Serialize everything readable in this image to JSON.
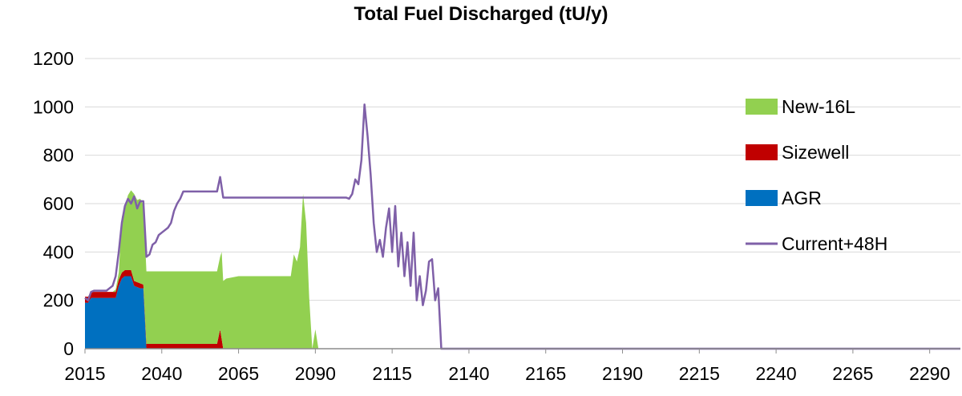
{
  "chart_data": {
    "type": "area",
    "title": "Total Fuel Discharged (tU/y)",
    "xlabel": "",
    "ylabel": "",
    "xlim": [
      2015,
      2300
    ],
    "ylim": [
      0,
      1200
    ],
    "xticks": [
      2015,
      2040,
      2065,
      2090,
      2115,
      2140,
      2165,
      2190,
      2215,
      2240,
      2265,
      2290
    ],
    "yticks": [
      0,
      200,
      400,
      600,
      800,
      1000,
      1200
    ],
    "grid": "horizontal",
    "legend_position": "top-right",
    "stack_order": [
      "AGR",
      "Sizewell",
      "New-16L"
    ],
    "series": [
      {
        "name": "AGR",
        "kind": "area",
        "color": "#0070C0",
        "points": [
          [
            2015,
            190
          ],
          [
            2016,
            190
          ],
          [
            2017,
            210
          ],
          [
            2018,
            210
          ],
          [
            2019,
            210
          ],
          [
            2020,
            210
          ],
          [
            2021,
            210
          ],
          [
            2022,
            210
          ],
          [
            2023,
            210
          ],
          [
            2024,
            210
          ],
          [
            2025,
            210
          ],
          [
            2026,
            260
          ],
          [
            2027,
            290
          ],
          [
            2028,
            300
          ],
          [
            2029,
            300
          ],
          [
            2030,
            300
          ],
          [
            2031,
            260
          ],
          [
            2032,
            255
          ],
          [
            2033,
            250
          ],
          [
            2034,
            250
          ],
          [
            2035,
            0
          ],
          [
            2045,
            0
          ],
          [
            2060,
            0
          ],
          [
            2090,
            0
          ]
        ]
      },
      {
        "name": "Sizewell",
        "kind": "area",
        "color": "#C00000",
        "points": [
          [
            2015,
            25
          ],
          [
            2016,
            25
          ],
          [
            2017,
            25
          ],
          [
            2018,
            25
          ],
          [
            2019,
            25
          ],
          [
            2020,
            25
          ],
          [
            2021,
            25
          ],
          [
            2022,
            25
          ],
          [
            2023,
            25
          ],
          [
            2024,
            25
          ],
          [
            2025,
            25
          ],
          [
            2026,
            25
          ],
          [
            2027,
            25
          ],
          [
            2028,
            25
          ],
          [
            2029,
            25
          ],
          [
            2030,
            25
          ],
          [
            2031,
            20
          ],
          [
            2032,
            20
          ],
          [
            2033,
            20
          ],
          [
            2034,
            15
          ],
          [
            2035,
            20
          ],
          [
            2036,
            20
          ],
          [
            2040,
            20
          ],
          [
            2045,
            20
          ],
          [
            2050,
            20
          ],
          [
            2055,
            20
          ],
          [
            2058,
            20
          ],
          [
            2059,
            80
          ],
          [
            2060,
            0
          ],
          [
            2090,
            0
          ]
        ]
      },
      {
        "name": "New-16L",
        "kind": "area",
        "color": "#92D050",
        "points": [
          [
            2015,
            0
          ],
          [
            2024,
            0
          ],
          [
            2025,
            10
          ],
          [
            2026,
            30
          ],
          [
            2027,
            230
          ],
          [
            2028,
            260
          ],
          [
            2029,
            310
          ],
          [
            2030,
            330
          ],
          [
            2031,
            360
          ],
          [
            2032,
            340
          ],
          [
            2033,
            350
          ],
          [
            2034,
            330
          ],
          [
            2035,
            300
          ],
          [
            2036,
            300
          ],
          [
            2040,
            300
          ],
          [
            2045,
            300
          ],
          [
            2050,
            300
          ],
          [
            2055,
            300
          ],
          [
            2058,
            300
          ],
          [
            2059,
            300
          ],
          [
            2059.5,
            360
          ],
          [
            2060,
            280
          ],
          [
            2061,
            290
          ],
          [
            2065,
            300
          ],
          [
            2070,
            300
          ],
          [
            2075,
            300
          ],
          [
            2080,
            300
          ],
          [
            2082,
            300
          ],
          [
            2083,
            390
          ],
          [
            2084,
            360
          ],
          [
            2085,
            420
          ],
          [
            2086,
            640
          ],
          [
            2087,
            520
          ],
          [
            2088,
            210
          ],
          [
            2089,
            0
          ],
          [
            2090,
            80
          ],
          [
            2091,
            0
          ],
          [
            2300,
            0
          ]
        ]
      },
      {
        "name": "Current+48H",
        "kind": "line",
        "color": "#7F60A8",
        "points": [
          [
            2015,
            210
          ],
          [
            2016,
            200
          ],
          [
            2017,
            235
          ],
          [
            2018,
            240
          ],
          [
            2019,
            240
          ],
          [
            2020,
            240
          ],
          [
            2021,
            240
          ],
          [
            2022,
            240
          ],
          [
            2023,
            250
          ],
          [
            2024,
            260
          ],
          [
            2025,
            300
          ],
          [
            2026,
            400
          ],
          [
            2027,
            520
          ],
          [
            2028,
            590
          ],
          [
            2029,
            620
          ],
          [
            2030,
            600
          ],
          [
            2031,
            630
          ],
          [
            2032,
            580
          ],
          [
            2033,
            610
          ],
          [
            2034,
            610
          ],
          [
            2035,
            380
          ],
          [
            2036,
            390
          ],
          [
            2037,
            430
          ],
          [
            2038,
            440
          ],
          [
            2039,
            470
          ],
          [
            2040,
            480
          ],
          [
            2041,
            490
          ],
          [
            2042,
            500
          ],
          [
            2043,
            520
          ],
          [
            2044,
            570
          ],
          [
            2045,
            600
          ],
          [
            2046,
            620
          ],
          [
            2047,
            650
          ],
          [
            2050,
            650
          ],
          [
            2053,
            650
          ],
          [
            2056,
            650
          ],
          [
            2058,
            650
          ],
          [
            2059,
            710
          ],
          [
            2060,
            625
          ],
          [
            2070,
            625
          ],
          [
            2080,
            625
          ],
          [
            2090,
            625
          ],
          [
            2100,
            625
          ],
          [
            2101,
            620
          ],
          [
            2102,
            640
          ],
          [
            2103,
            700
          ],
          [
            2104,
            680
          ],
          [
            2105,
            780
          ],
          [
            2106,
            1010
          ],
          [
            2107,
            880
          ],
          [
            2108,
            720
          ],
          [
            2109,
            520
          ],
          [
            2110,
            400
          ],
          [
            2111,
            450
          ],
          [
            2112,
            380
          ],
          [
            2113,
            500
          ],
          [
            2114,
            580
          ],
          [
            2115,
            400
          ],
          [
            2116,
            590
          ],
          [
            2117,
            340
          ],
          [
            2118,
            480
          ],
          [
            2119,
            300
          ],
          [
            2120,
            440
          ],
          [
            2121,
            260
          ],
          [
            2122,
            480
          ],
          [
            2123,
            200
          ],
          [
            2124,
            300
          ],
          [
            2125,
            180
          ],
          [
            2126,
            240
          ],
          [
            2127,
            360
          ],
          [
            2128,
            370
          ],
          [
            2129,
            200
          ],
          [
            2130,
            250
          ],
          [
            2131,
            0
          ],
          [
            2300,
            0
          ]
        ]
      }
    ]
  }
}
